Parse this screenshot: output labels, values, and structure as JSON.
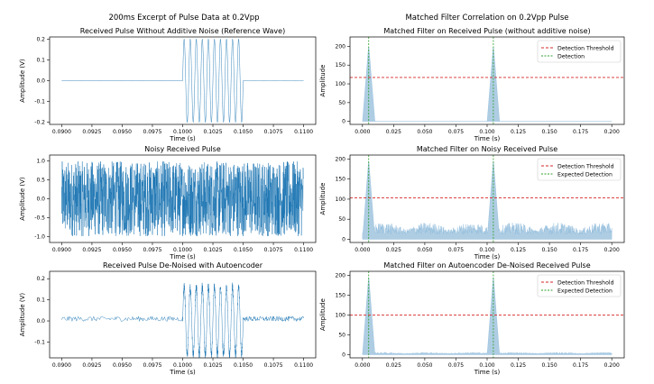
{
  "figure": {
    "left_suptitle": "200ms Excerpt of Pulse Data at 0.2Vpp",
    "right_suptitle": "Matched Filter Correlation on 0.2Vpp Pulse"
  },
  "colors": {
    "signal": "#1f77b4",
    "fill": "#aecde3",
    "threshold": "#d62728",
    "detection": "#2ca02c"
  },
  "chart_data": [
    {
      "id": "p1",
      "type": "line",
      "title": "Received Pulse Without Additive Noise (Reference Wave)",
      "xlabel": "Time (s)",
      "ylabel": "Amplitude (V)",
      "xlim": [
        0.089,
        0.111
      ],
      "ylim": [
        -0.21,
        0.21
      ],
      "xticks": [
        "0.0900",
        "0.0925",
        "0.0950",
        "0.0975",
        "0.1000",
        "0.1025",
        "0.1050",
        "0.1075",
        "0.1100"
      ],
      "yticks": [
        "0.2",
        "0.1",
        "0.0",
        "-0.1",
        "-0.2"
      ],
      "series": [
        {
          "kind": "pulse",
          "x_start": 0.09,
          "x_end": 0.11,
          "pulse_start": 0.1,
          "pulse_end": 0.105,
          "amplitude": 0.2,
          "cycles": 10,
          "noise": 0
        }
      ]
    },
    {
      "id": "p2",
      "type": "line",
      "title": "Noisy Received Pulse",
      "xlabel": "Time (s)",
      "ylabel": "Amplitude (V)",
      "xlim": [
        0.089,
        0.111
      ],
      "ylim": [
        -1.15,
        1.15
      ],
      "xticks": [
        "0.0900",
        "0.0925",
        "0.0950",
        "0.0975",
        "0.1000",
        "0.1025",
        "0.1050",
        "0.1075",
        "0.1100"
      ],
      "yticks": [
        "1.0",
        "0.5",
        "0.0",
        "-0.5",
        "-1.0"
      ],
      "series": [
        {
          "kind": "noise",
          "x_start": 0.09,
          "x_end": 0.11,
          "amplitude": 1.0
        }
      ]
    },
    {
      "id": "p3",
      "type": "line",
      "title": "Received Pulse De-Noised with Autoencoder",
      "xlabel": "Time (s)",
      "ylabel": "Amplitude (V)",
      "xlim": [
        0.089,
        0.111
      ],
      "ylim": [
        -0.175,
        0.235
      ],
      "xticks": [
        "0.0900",
        "0.0925",
        "0.0950",
        "0.0975",
        "0.1000",
        "0.1025",
        "0.1050",
        "0.1075",
        "0.1100"
      ],
      "yticks": [
        "0.2",
        "0.1",
        "0.0",
        "-0.1"
      ],
      "series": [
        {
          "kind": "pulse",
          "x_start": 0.09,
          "x_end": 0.11,
          "pulse_start": 0.1,
          "pulse_end": 0.105,
          "amplitude": 0.18,
          "offset": 0.01,
          "cycles": 10,
          "noise": 0.012
        }
      ]
    },
    {
      "id": "p4",
      "type": "area",
      "title": "Matched Filter on Received Pulse (without additive noise)",
      "xlabel": "Time (s)",
      "ylabel": "Amplitude",
      "xlim": [
        -0.01,
        0.21
      ],
      "ylim": [
        -8,
        225
      ],
      "xticks": [
        "0.000",
        "0.025",
        "0.050",
        "0.075",
        "0.100",
        "0.125",
        "0.150",
        "0.175",
        "0.200"
      ],
      "yticks": [
        "200",
        "150",
        "100",
        "50",
        "0"
      ],
      "peaks": [
        0.005,
        0.105
      ],
      "peak_height": 205,
      "peak_halfwidth": 0.005,
      "floor": 0,
      "floor_noise": 0,
      "threshold": 117,
      "detection_lines": [
        0.005,
        0.105
      ],
      "legend": [
        "Detection Threshold",
        "Detection"
      ],
      "legend_position": "upper right"
    },
    {
      "id": "p5",
      "type": "area",
      "title": "Matched Filter on Noisy Received Pulse",
      "xlabel": "Time (s)",
      "ylabel": "Amplitude",
      "xlim": [
        -0.01,
        0.21
      ],
      "ylim": [
        -8,
        210
      ],
      "xticks": [
        "0.000",
        "0.025",
        "0.050",
        "0.075",
        "0.100",
        "0.125",
        "0.150",
        "0.175",
        "0.200"
      ],
      "yticks": [
        "200",
        "150",
        "100",
        "50",
        "0"
      ],
      "peaks": [
        0.005,
        0.105
      ],
      "peak_height": 200,
      "peak_halfwidth": 0.005,
      "floor": 12,
      "floor_noise": 30,
      "threshold": 103,
      "detection_lines": [
        0.005,
        0.105
      ],
      "legend": [
        "Detection Threshold",
        "Expected Detection"
      ],
      "legend_position": "upper right"
    },
    {
      "id": "p6",
      "type": "area",
      "title": "Matched Filter on Autoencoder De-Noised Received Pulse",
      "xlabel": "Time (s)",
      "ylabel": "Amplitude",
      "xlim": [
        -0.01,
        0.21
      ],
      "ylim": [
        -8,
        210
      ],
      "xticks": [
        "0.000",
        "0.025",
        "0.050",
        "0.075",
        "0.100",
        "0.125",
        "0.150",
        "0.175",
        "0.200"
      ],
      "yticks": [
        "200",
        "150",
        "100",
        "50",
        "0"
      ],
      "peaks": [
        0.005,
        0.105
      ],
      "peak_height": 200,
      "peak_halfwidth": 0.005,
      "floor": 2,
      "floor_noise": 4,
      "threshold": 100,
      "detection_lines": [
        0.005,
        0.105
      ],
      "legend": [
        "Detection Threshold",
        "Expected Detection"
      ],
      "legend_position": "upper right"
    }
  ]
}
